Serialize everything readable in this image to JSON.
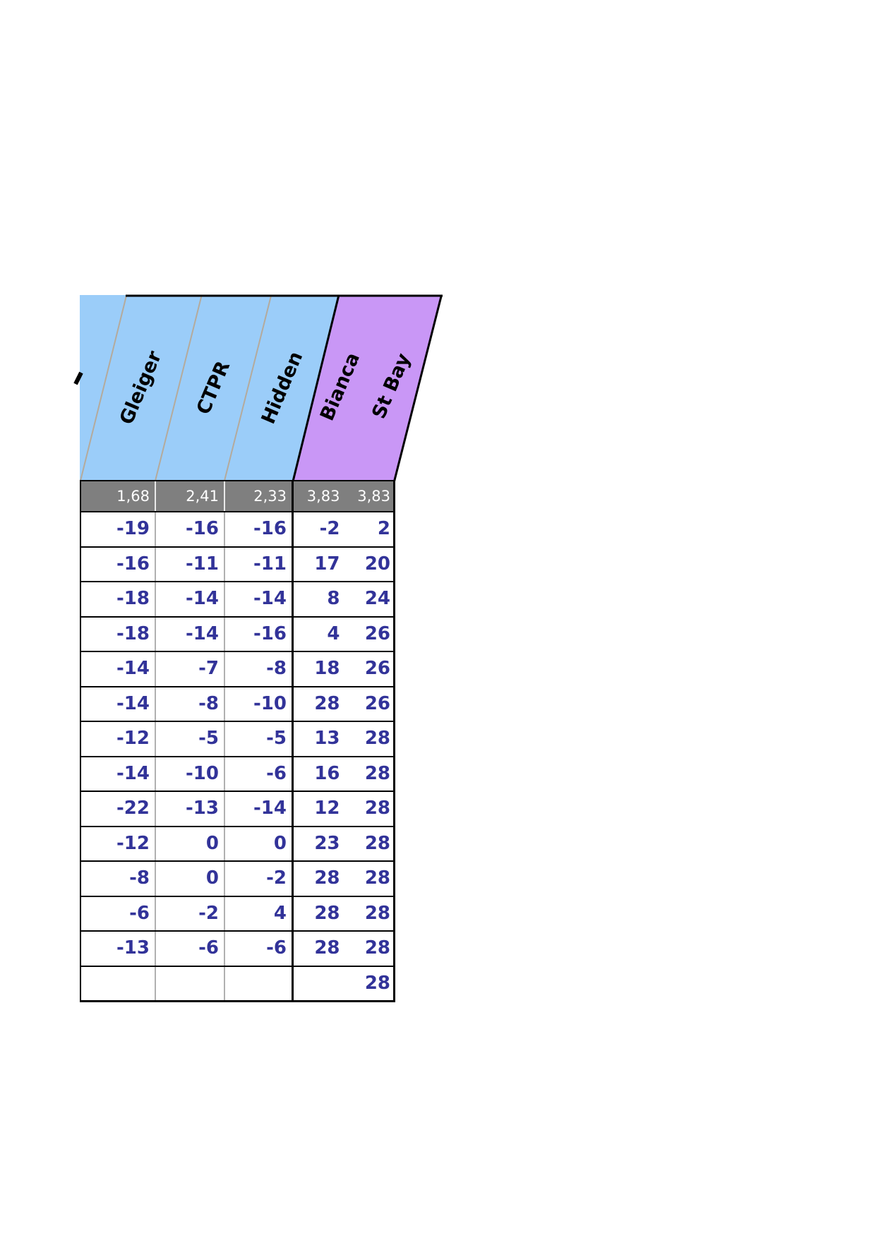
{
  "table": {
    "column_groups": [
      {
        "name": "blue-group",
        "color": "#9bcdf9",
        "columns": [
          "Gleiger",
          "CTPR",
          "Hidden"
        ]
      },
      {
        "name": "purple-group",
        "color": "#c997f6",
        "columns": [
          "Bianca",
          "St Bay"
        ]
      }
    ],
    "columns": [
      "Gleiger",
      "CTPR",
      "Hidden",
      "Bianca",
      "St Bay"
    ],
    "stats_row": [
      "1,68",
      "2,41",
      "2,33",
      "3,83",
      "3,83"
    ],
    "rows": [
      [
        "-19",
        "-16",
        "-16",
        "-2",
        "2"
      ],
      [
        "-16",
        "-11",
        "-11",
        "17",
        "20"
      ],
      [
        "-18",
        "-14",
        "-14",
        "8",
        "24"
      ],
      [
        "-18",
        "-14",
        "-16",
        "4",
        "26"
      ],
      [
        "-14",
        "-7",
        "-8",
        "18",
        "26"
      ],
      [
        "-14",
        "-8",
        "-10",
        "28",
        "26"
      ],
      [
        "-12",
        "-5",
        "-5",
        "13",
        "28"
      ],
      [
        "-14",
        "-10",
        "-6",
        "16",
        "28"
      ],
      [
        "-22",
        "-13",
        "-14",
        "12",
        "28"
      ],
      [
        "-12",
        "0",
        "0",
        "23",
        "28"
      ],
      [
        "-8",
        "0",
        "-2",
        "28",
        "28"
      ],
      [
        "-6",
        "-2",
        "4",
        "28",
        "28"
      ],
      [
        "-13",
        "-6",
        "-6",
        "28",
        "28"
      ],
      [
        "",
        "",
        "",
        "",
        "28"
      ]
    ]
  },
  "colors": {
    "header_blue": "#9bcdf9",
    "header_purple": "#c997f6",
    "stats_band_gray": "#7f7f7f",
    "value_navy": "#323399",
    "slant_divider": "#b4aa9c",
    "border_black": "#000000"
  }
}
